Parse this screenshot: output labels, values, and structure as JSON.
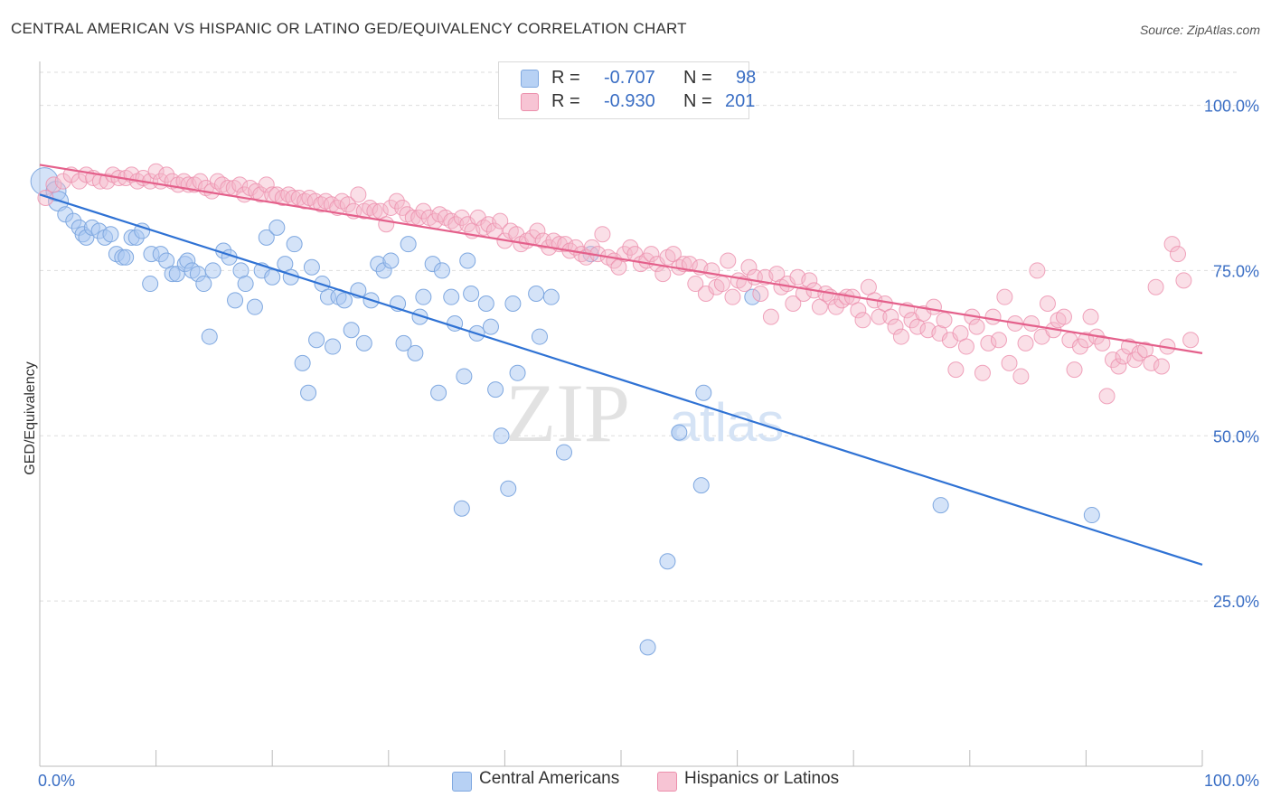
{
  "title": "CENTRAL AMERICAN VS HISPANIC OR LATINO GED/EQUIVALENCY CORRELATION CHART",
  "source": "Source: ZipAtlas.com",
  "watermark": {
    "zip": "ZIP",
    "atlas": "atlas"
  },
  "legend": {
    "r_label": "R =",
    "n_label": "N =",
    "central": {
      "r": "-0.707",
      "n": "98"
    },
    "hispanic": {
      "r": "-0.930",
      "n": "201"
    }
  },
  "colors": {
    "central_fill": "#aac8f2",
    "central_stroke": "#7fa8e0",
    "central_line": "#2f72d4",
    "hispanic_fill": "#f5b7ca",
    "hispanic_stroke": "#ec8fac",
    "hispanic_line": "#e4608b",
    "axis_text": "#3a6ec4",
    "grid": "#dddddd"
  },
  "chart_data": {
    "type": "scatter",
    "title": "CENTRAL AMERICAN VS HISPANIC OR LATINO GED/EQUIVALENCY CORRELATION CHART",
    "xlabel": "",
    "ylabel": "GED/Equivalency",
    "xlim": [
      0,
      100
    ],
    "ylim": [
      0,
      105
    ],
    "x_tick_labels": [
      "0.0%",
      "100.0%"
    ],
    "y_ticks": [
      25,
      50,
      75,
      100
    ],
    "y_tick_labels": [
      "25.0%",
      "50.0%",
      "75.0%",
      "100.0%"
    ],
    "grid": true,
    "legend_position": "top-center",
    "series": [
      {
        "name": "Central Americans",
        "r": -0.707,
        "n": 98,
        "trend": {
          "x": [
            0,
            100
          ],
          "y": [
            86.5,
            30.5
          ]
        },
        "points": [
          [
            0.4,
            88.5
          ],
          [
            1.4,
            87.0
          ],
          [
            1.6,
            85.5
          ],
          [
            2.2,
            83.5
          ],
          [
            2.9,
            82.5
          ],
          [
            3.4,
            81.5
          ],
          [
            3.7,
            80.5
          ],
          [
            4.0,
            80.0
          ],
          [
            4.5,
            81.5
          ],
          [
            5.1,
            81.0
          ],
          [
            5.6,
            80.0
          ],
          [
            6.1,
            80.5
          ],
          [
            6.6,
            77.5
          ],
          [
            7.1,
            77.0
          ],
          [
            7.4,
            77.0
          ],
          [
            7.9,
            80.0
          ],
          [
            8.3,
            80.0
          ],
          [
            8.8,
            81.0
          ],
          [
            9.5,
            73.0
          ],
          [
            9.6,
            77.5
          ],
          [
            10.4,
            77.5
          ],
          [
            10.9,
            76.5
          ],
          [
            11.4,
            74.5
          ],
          [
            11.8,
            74.5
          ],
          [
            12.5,
            76.0
          ],
          [
            12.7,
            76.5
          ],
          [
            13.1,
            75.0
          ],
          [
            13.6,
            74.5
          ],
          [
            14.1,
            73.0
          ],
          [
            14.6,
            65.0
          ],
          [
            14.9,
            75.0
          ],
          [
            15.8,
            78.0
          ],
          [
            16.3,
            77.0
          ],
          [
            16.8,
            70.5
          ],
          [
            17.3,
            75.0
          ],
          [
            17.7,
            73.0
          ],
          [
            18.5,
            69.5
          ],
          [
            19.1,
            75.0
          ],
          [
            19.5,
            80.0
          ],
          [
            20.0,
            74.0
          ],
          [
            20.4,
            81.5
          ],
          [
            21.1,
            76.0
          ],
          [
            21.6,
            74.0
          ],
          [
            21.9,
            79.0
          ],
          [
            22.6,
            61.0
          ],
          [
            23.1,
            56.5
          ],
          [
            23.4,
            75.5
          ],
          [
            23.8,
            64.5
          ],
          [
            24.3,
            73.0
          ],
          [
            24.8,
            71.0
          ],
          [
            25.2,
            63.5
          ],
          [
            25.7,
            71.0
          ],
          [
            26.2,
            70.5
          ],
          [
            26.8,
            66.0
          ],
          [
            27.4,
            72.0
          ],
          [
            27.9,
            64.0
          ],
          [
            28.5,
            70.5
          ],
          [
            29.1,
            76.0
          ],
          [
            29.6,
            75.0
          ],
          [
            30.2,
            76.5
          ],
          [
            30.8,
            70.0
          ],
          [
            31.3,
            64.0
          ],
          [
            31.7,
            79.0
          ],
          [
            32.3,
            62.5
          ],
          [
            32.7,
            68.0
          ],
          [
            33.0,
            71.0
          ],
          [
            33.8,
            76.0
          ],
          [
            34.3,
            56.5
          ],
          [
            34.6,
            75.0
          ],
          [
            35.4,
            71.0
          ],
          [
            35.7,
            67.0
          ],
          [
            36.3,
            39.0
          ],
          [
            36.5,
            59.0
          ],
          [
            36.8,
            76.5
          ],
          [
            37.1,
            71.5
          ],
          [
            37.6,
            65.5
          ],
          [
            38.4,
            70.0
          ],
          [
            38.8,
            66.5
          ],
          [
            39.2,
            57.0
          ],
          [
            39.7,
            50.0
          ],
          [
            40.3,
            42.0
          ],
          [
            40.7,
            70.0
          ],
          [
            41.1,
            59.5
          ],
          [
            42.7,
            71.5
          ],
          [
            43.0,
            65.0
          ],
          [
            44.0,
            71.0
          ],
          [
            45.1,
            47.5
          ],
          [
            47.4,
            77.5
          ],
          [
            52.3,
            18.0
          ],
          [
            54.0,
            31.0
          ],
          [
            55.0,
            50.5
          ],
          [
            56.9,
            42.5
          ],
          [
            57.1,
            56.5
          ],
          [
            61.3,
            71.0
          ],
          [
            77.5,
            39.5
          ],
          [
            90.5,
            38.0
          ]
        ]
      },
      {
        "name": "Hispanics or Latinos",
        "r": -0.93,
        "n": 201,
        "trend": {
          "x": [
            0,
            100
          ],
          "y": [
            91.0,
            62.5
          ]
        },
        "points": [
          [
            0.5,
            86.0
          ],
          [
            1.2,
            88.0
          ],
          [
            2.0,
            88.5
          ],
          [
            2.7,
            89.5
          ],
          [
            3.4,
            88.5
          ],
          [
            4.0,
            89.5
          ],
          [
            4.6,
            89.0
          ],
          [
            5.2,
            88.5
          ],
          [
            5.8,
            88.5
          ],
          [
            6.3,
            89.5
          ],
          [
            6.8,
            89.0
          ],
          [
            7.4,
            89.0
          ],
          [
            7.9,
            89.5
          ],
          [
            8.4,
            88.5
          ],
          [
            8.9,
            89.0
          ],
          [
            9.5,
            88.5
          ],
          [
            10.0,
            90.0
          ],
          [
            10.4,
            88.5
          ],
          [
            10.9,
            89.5
          ],
          [
            11.4,
            88.5
          ],
          [
            11.9,
            88.0
          ],
          [
            12.4,
            88.5
          ],
          [
            12.8,
            88.0
          ],
          [
            13.3,
            88.0
          ],
          [
            13.8,
            88.5
          ],
          [
            14.3,
            87.5
          ],
          [
            14.8,
            87.0
          ],
          [
            15.3,
            88.5
          ],
          [
            15.7,
            88.0
          ],
          [
            16.2,
            87.5
          ],
          [
            16.7,
            87.5
          ],
          [
            17.2,
            88.0
          ],
          [
            17.6,
            86.5
          ],
          [
            18.1,
            87.5
          ],
          [
            18.6,
            87.0
          ],
          [
            19.0,
            86.5
          ],
          [
            19.5,
            88.0
          ],
          [
            20.0,
            86.5
          ],
          [
            20.4,
            86.5
          ],
          [
            20.9,
            86.0
          ],
          [
            21.4,
            86.5
          ],
          [
            21.8,
            86.0
          ],
          [
            22.3,
            86.0
          ],
          [
            22.8,
            85.5
          ],
          [
            23.2,
            86.0
          ],
          [
            23.7,
            85.5
          ],
          [
            24.2,
            85.0
          ],
          [
            24.6,
            85.5
          ],
          [
            25.1,
            85.0
          ],
          [
            25.6,
            84.5
          ],
          [
            26.0,
            85.5
          ],
          [
            26.5,
            85.0
          ],
          [
            27.0,
            84.0
          ],
          [
            27.4,
            86.5
          ],
          [
            27.9,
            84.0
          ],
          [
            28.4,
            84.5
          ],
          [
            28.8,
            84.0
          ],
          [
            29.3,
            84.0
          ],
          [
            29.8,
            82.0
          ],
          [
            30.2,
            84.5
          ],
          [
            30.7,
            85.5
          ],
          [
            31.2,
            84.5
          ],
          [
            31.6,
            83.5
          ],
          [
            32.1,
            83.0
          ],
          [
            32.6,
            83.0
          ],
          [
            33.0,
            84.0
          ],
          [
            33.5,
            83.0
          ],
          [
            34.0,
            82.5
          ],
          [
            34.4,
            83.5
          ],
          [
            34.9,
            83.0
          ],
          [
            35.4,
            82.5
          ],
          [
            35.8,
            82.0
          ],
          [
            36.3,
            83.0
          ],
          [
            36.8,
            82.0
          ],
          [
            37.2,
            81.0
          ],
          [
            37.7,
            83.0
          ],
          [
            38.2,
            81.5
          ],
          [
            38.6,
            82.0
          ],
          [
            39.1,
            81.0
          ],
          [
            39.6,
            82.5
          ],
          [
            40.0,
            79.5
          ],
          [
            40.5,
            81.0
          ],
          [
            41.0,
            80.5
          ],
          [
            41.4,
            79.0
          ],
          [
            41.9,
            79.5
          ],
          [
            42.4,
            80.0
          ],
          [
            42.8,
            81.0
          ],
          [
            43.3,
            79.5
          ],
          [
            43.8,
            78.5
          ],
          [
            44.2,
            79.5
          ],
          [
            44.7,
            79.0
          ],
          [
            45.2,
            79.0
          ],
          [
            45.6,
            78.0
          ],
          [
            46.1,
            78.5
          ],
          [
            46.6,
            77.5
          ],
          [
            47.0,
            77.0
          ],
          [
            47.5,
            78.5
          ],
          [
            48.0,
            77.5
          ],
          [
            48.4,
            80.5
          ],
          [
            48.9,
            77.0
          ],
          [
            49.4,
            76.5
          ],
          [
            49.8,
            75.5
          ],
          [
            50.3,
            77.5
          ],
          [
            50.8,
            78.5
          ],
          [
            51.2,
            77.5
          ],
          [
            51.7,
            76.0
          ],
          [
            52.2,
            76.5
          ],
          [
            52.6,
            77.5
          ],
          [
            53.1,
            76.0
          ],
          [
            53.6,
            74.5
          ],
          [
            54.0,
            77.0
          ],
          [
            54.5,
            77.5
          ],
          [
            55.0,
            75.5
          ],
          [
            55.4,
            76.0
          ],
          [
            55.9,
            76.0
          ],
          [
            56.4,
            73.0
          ],
          [
            56.8,
            75.5
          ],
          [
            57.3,
            71.5
          ],
          [
            57.8,
            75.0
          ],
          [
            58.2,
            72.5
          ],
          [
            58.7,
            73.0
          ],
          [
            59.2,
            76.5
          ],
          [
            59.6,
            71.0
          ],
          [
            60.1,
            73.5
          ],
          [
            60.6,
            73.0
          ],
          [
            61.0,
            75.5
          ],
          [
            61.5,
            74.0
          ],
          [
            62.0,
            71.5
          ],
          [
            62.4,
            74.0
          ],
          [
            62.9,
            68.0
          ],
          [
            63.4,
            74.5
          ],
          [
            63.8,
            72.5
          ],
          [
            64.3,
            73.0
          ],
          [
            64.8,
            70.0
          ],
          [
            65.2,
            74.0
          ],
          [
            65.7,
            71.5
          ],
          [
            66.2,
            73.5
          ],
          [
            66.6,
            72.0
          ],
          [
            67.1,
            69.5
          ],
          [
            67.6,
            71.5
          ],
          [
            68.0,
            71.0
          ],
          [
            68.5,
            69.5
          ],
          [
            69.0,
            70.5
          ],
          [
            69.4,
            71.0
          ],
          [
            69.9,
            71.0
          ],
          [
            70.4,
            69.0
          ],
          [
            70.8,
            67.5
          ],
          [
            71.3,
            72.5
          ],
          [
            71.8,
            70.5
          ],
          [
            72.2,
            68.0
          ],
          [
            72.7,
            70.0
          ],
          [
            73.2,
            68.0
          ],
          [
            73.6,
            66.5
          ],
          [
            74.1,
            65.0
          ],
          [
            74.6,
            69.0
          ],
          [
            75.0,
            67.5
          ],
          [
            75.5,
            66.5
          ],
          [
            76.0,
            68.5
          ],
          [
            76.4,
            66.0
          ],
          [
            76.9,
            69.5
          ],
          [
            77.4,
            65.5
          ],
          [
            77.8,
            67.5
          ],
          [
            78.3,
            64.5
          ],
          [
            78.8,
            60.0
          ],
          [
            79.2,
            65.5
          ],
          [
            79.7,
            63.5
          ],
          [
            80.2,
            68.0
          ],
          [
            80.6,
            66.5
          ],
          [
            81.1,
            59.5
          ],
          [
            81.6,
            64.0
          ],
          [
            82.0,
            68.0
          ],
          [
            82.5,
            64.5
          ],
          [
            83.0,
            71.0
          ],
          [
            83.4,
            61.0
          ],
          [
            83.9,
            67.0
          ],
          [
            84.4,
            59.0
          ],
          [
            84.8,
            64.0
          ],
          [
            85.3,
            67.0
          ],
          [
            85.8,
            75.0
          ],
          [
            86.2,
            65.0
          ],
          [
            86.7,
            70.0
          ],
          [
            87.2,
            66.0
          ],
          [
            87.6,
            67.5
          ],
          [
            88.1,
            68.0
          ],
          [
            88.6,
            64.5
          ],
          [
            89.0,
            60.0
          ],
          [
            89.5,
            63.5
          ],
          [
            90.0,
            64.5
          ],
          [
            90.4,
            68.0
          ],
          [
            90.9,
            65.0
          ],
          [
            91.4,
            64.0
          ],
          [
            91.8,
            56.0
          ],
          [
            92.3,
            61.5
          ],
          [
            92.8,
            60.5
          ],
          [
            93.2,
            62.0
          ],
          [
            93.7,
            63.5
          ],
          [
            94.2,
            61.5
          ],
          [
            94.6,
            62.5
          ],
          [
            95.1,
            63.0
          ],
          [
            95.6,
            61.0
          ],
          [
            96.0,
            72.5
          ],
          [
            96.5,
            60.5
          ],
          [
            97.0,
            63.5
          ],
          [
            97.4,
            79.0
          ],
          [
            97.9,
            77.5
          ],
          [
            98.4,
            73.5
          ],
          [
            99.0,
            64.5
          ]
        ]
      }
    ]
  },
  "legend_bottom": {
    "central": "Central Americans",
    "hispanic": "Hispanics or Latinos"
  }
}
